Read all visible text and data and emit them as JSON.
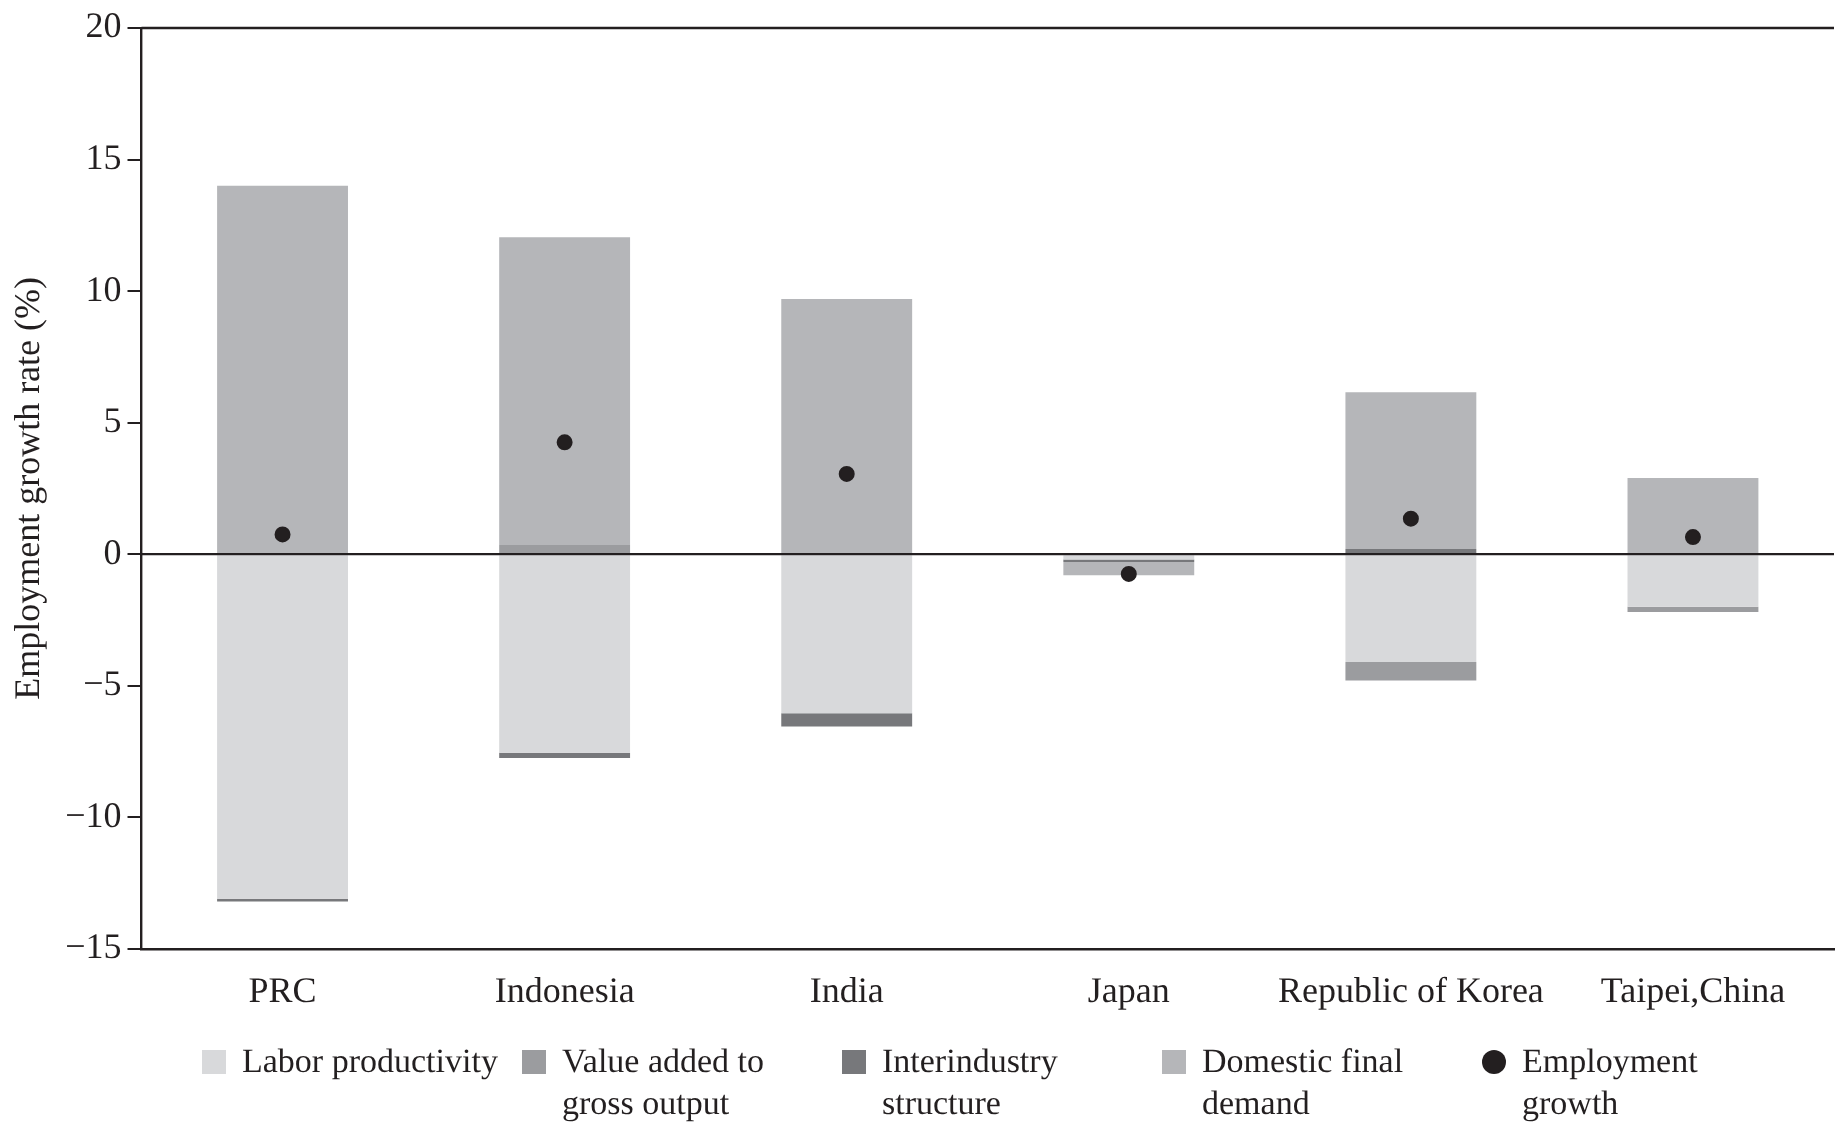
{
  "chart_data": {
    "type": "bar",
    "stacked": true,
    "ylabel": "Employment growth rate (%)",
    "categories": [
      "PRC",
      "Indonesia",
      "India",
      "Japan",
      "Republic of Korea",
      "Taipei,China"
    ],
    "ylim": [
      -15,
      20
    ],
    "yticks": [
      -15,
      -10,
      -5,
      0,
      5,
      10,
      15,
      20
    ],
    "legend": "bottom",
    "series": [
      {
        "name": "Labor productivity",
        "color": "#d8d9db",
        "values": [
          -13.1,
          -7.55,
          -6.05,
          -0.2,
          -4.1,
          -2.0
        ]
      },
      {
        "name": "Value added to gross output",
        "color": "#9b9c9f",
        "values": [
          null,
          0.35,
          null,
          null,
          -0.7,
          -0.2
        ]
      },
      {
        "name": "Interindustry structure",
        "color": "#77787b",
        "values": [
          -0.1,
          -0.2,
          -0.5,
          -0.1,
          0.2,
          null
        ]
      },
      {
        "name": "Domestic final demand",
        "color": "#b5b6b9",
        "values": [
          14.0,
          11.7,
          9.7,
          -0.5,
          5.95,
          2.9
        ]
      },
      {
        "name": "Employment growth",
        "type": "scatter",
        "marker": "circle",
        "color": "#231f20",
        "x": [
          "PRC",
          "Indonesia",
          "India",
          "Japan",
          "Republic of Korea",
          "Taipei,China"
        ],
        "values": [
          0.75,
          4.25,
          3.05,
          -0.75,
          1.35,
          0.65
        ]
      }
    ]
  }
}
